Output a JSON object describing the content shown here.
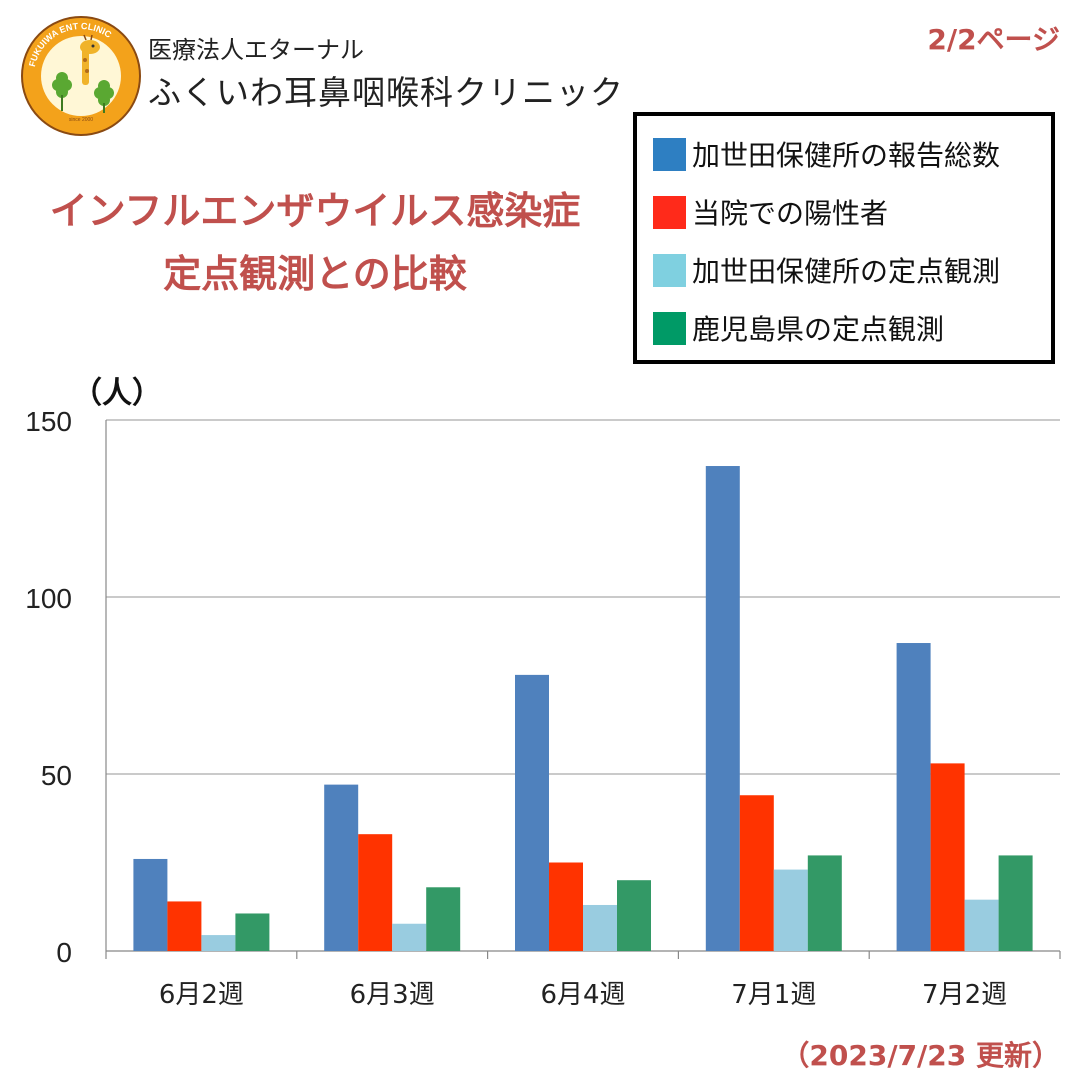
{
  "header": {
    "org_name": "医療法人エターナル",
    "clinic_name": "ふくいわ耳鼻咽喉科クリニック",
    "page_indicator": "2/2ページ"
  },
  "logo": {
    "text_ring": "FUKUIWA  ENT  CLINIC",
    "since": "since 2000"
  },
  "title": {
    "line1": "インフルエンザウイルス感染症",
    "line2": "定点観測との比較"
  },
  "footer": {
    "updated": "（2023/7/23 更新）"
  },
  "colors": {
    "accent": "#c0504d"
  },
  "chart_data": {
    "type": "bar",
    "title": "",
    "ylabel": "（人）",
    "xlabel": "",
    "categories": [
      "6月2週",
      "6月3週",
      "6月4週",
      "7月1週",
      "7月2週"
    ],
    "ylim": [
      0,
      150
    ],
    "yticks": [
      0,
      50,
      100,
      150
    ],
    "grid": true,
    "legend_position": "top-right",
    "series": [
      {
        "name": "加世田保健所の報告総数",
        "color": "#4f81bd",
        "legend_color": "#2e7fc2",
        "values": [
          26,
          47,
          78,
          137,
          87
        ]
      },
      {
        "name": "当院での陽性者",
        "color": "#ff3300",
        "legend_color": "#ff2a1a",
        "values": [
          14,
          33,
          25,
          44,
          53
        ]
      },
      {
        "name": "加世田保健所の定点観測",
        "color": "#99cce0",
        "legend_color": "#7fd0e0",
        "values": [
          4.5,
          7.7,
          13,
          23,
          14.5
        ]
      },
      {
        "name": "鹿児島県の定点観測",
        "color": "#339966",
        "legend_color": "#009a66",
        "values": [
          10.6,
          18,
          20,
          27,
          27
        ]
      }
    ]
  }
}
